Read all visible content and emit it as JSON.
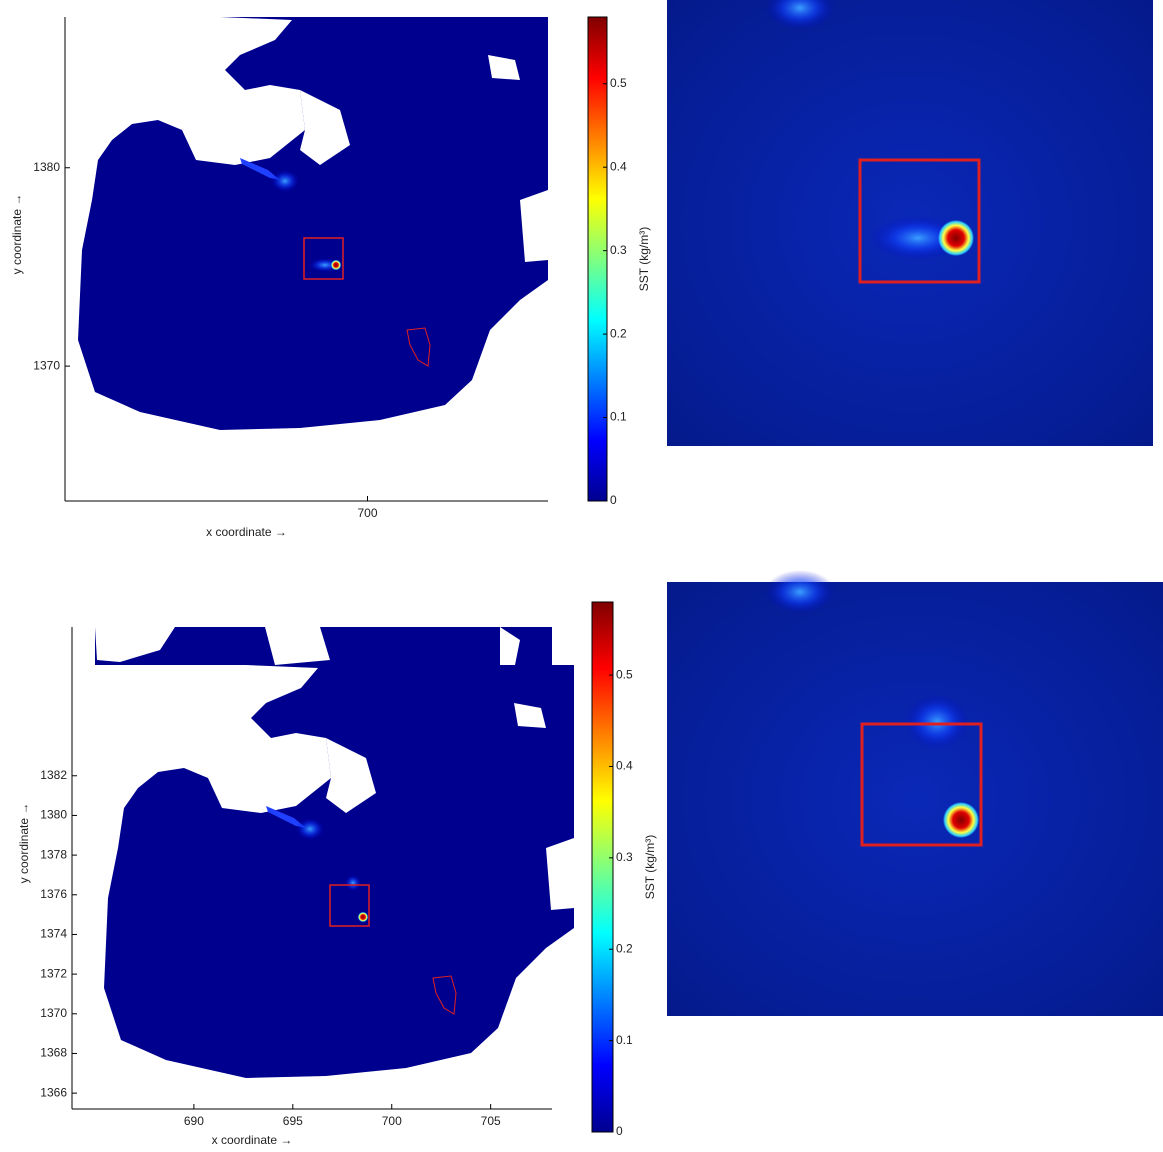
{
  "chart_data": [
    {
      "type": "heatmap",
      "xlabel": "x coordinate →",
      "ylabel": "y coordinate →",
      "xlim": [
        684.75,
        709.1
      ],
      "ylim": [
        1363.2,
        1387.6
      ],
      "xticks": [
        700
      ],
      "yticks": [
        1370,
        1380
      ],
      "colorbar": {
        "label": "SST (kg/m³)",
        "clim": [
          0,
          0.58
        ],
        "ticks": [
          0,
          0.1,
          0.2,
          0.3,
          0.4,
          0.5
        ]
      }
    },
    {
      "type": "heatmap",
      "xlabel": "x coordinate →",
      "ylabel": "y coordinate →",
      "xlim": [
        683.84,
        708.1
      ],
      "ylim": [
        1365.2,
        1389.5
      ],
      "xticks": [
        690,
        695,
        700,
        705
      ],
      "yticks": [
        1366,
        1368,
        1370,
        1372,
        1374,
        1376,
        1378,
        1380,
        1382
      ],
      "colorbar": {
        "label": "SST (kg/m³)",
        "clim": [
          0,
          0.58
        ],
        "ticks": [
          0,
          0.1,
          0.2,
          0.3,
          0.4,
          0.5
        ]
      }
    }
  ]
}
